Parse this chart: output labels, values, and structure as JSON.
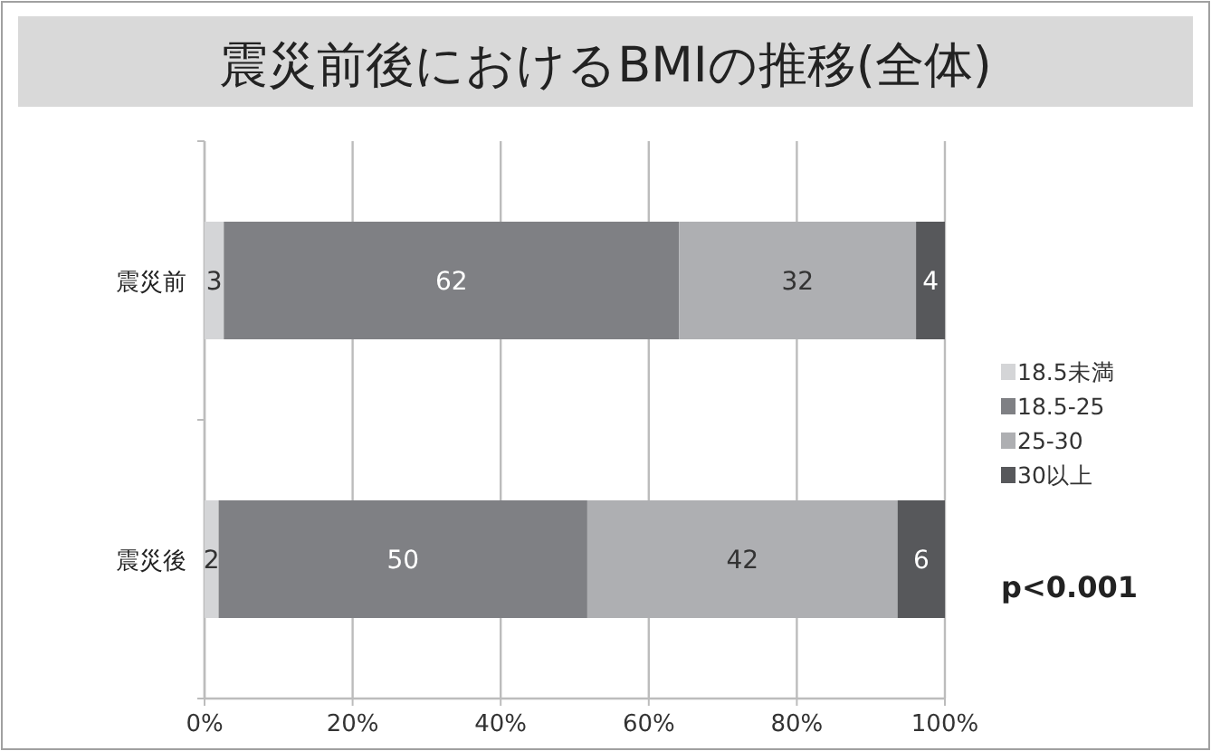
{
  "chart_data": {
    "type": "bar",
    "orientation": "horizontal",
    "stacked": true,
    "title": "震災前後におけるBMIの推移(全体)",
    "categories": [
      "震災前",
      "震災後"
    ],
    "series": [
      {
        "name": "18.5未満",
        "color": "#d4d5d7",
        "values": [
          2.6,
          1.9
        ],
        "value_labels": [
          "3",
          "2"
        ]
      },
      {
        "name": "18.5-25",
        "color": "#7f8084",
        "values": [
          61.5,
          49.8
        ],
        "value_labels": [
          "62",
          "50"
        ]
      },
      {
        "name": "25-30",
        "color": "#aeafb2",
        "values": [
          32.0,
          41.9
        ],
        "value_labels": [
          "32",
          "42"
        ]
      },
      {
        "name": "30以上",
        "color": "#57585b",
        "values": [
          3.9,
          6.4
        ],
        "value_labels": [
          "4",
          "6"
        ]
      }
    ],
    "xlim": [
      0,
      100
    ],
    "xticks": [
      {
        "value": 0,
        "label": "0%"
      },
      {
        "value": 20,
        "label": "20%"
      },
      {
        "value": 40,
        "label": "40%"
      },
      {
        "value": 60,
        "label": "60%"
      },
      {
        "value": 80,
        "label": "80%"
      },
      {
        "value": 100,
        "label": "100%"
      }
    ],
    "grid": "x",
    "legend": "right",
    "annotations": [
      "p<0.001"
    ]
  }
}
